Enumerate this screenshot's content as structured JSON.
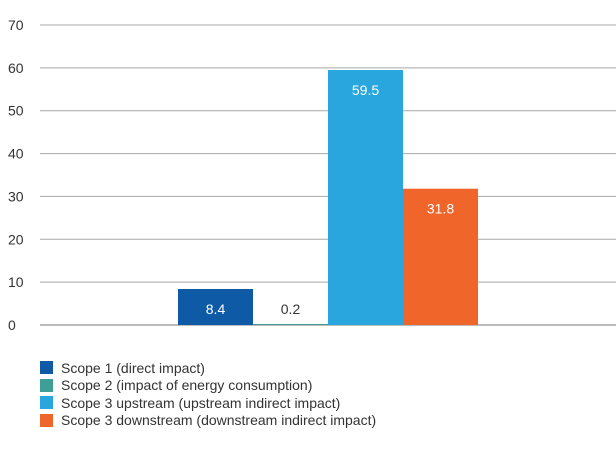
{
  "chart_data": {
    "type": "bar",
    "title": "",
    "xlabel": "",
    "ylabel": "",
    "ylim": [
      0,
      70
    ],
    "yticks": [
      0,
      10,
      20,
      30,
      40,
      50,
      60,
      70
    ],
    "grid": true,
    "legend_position": "bottom-left",
    "series": [
      {
        "name": "Scope 1 (direct impact)",
        "value": 8.4,
        "color": "#0e5aa7"
      },
      {
        "name": "Scope 2 (impact of energy consumption)",
        "value": 0.2,
        "color": "#3f9e96"
      },
      {
        "name": "Scope 3 upstream (upstream indirect impact)",
        "value": 59.5,
        "color": "#2aa6df"
      },
      {
        "name": "Scope 3 downstream (downstream indirect impact)",
        "value": 31.8,
        "color": "#f0662a"
      }
    ]
  }
}
